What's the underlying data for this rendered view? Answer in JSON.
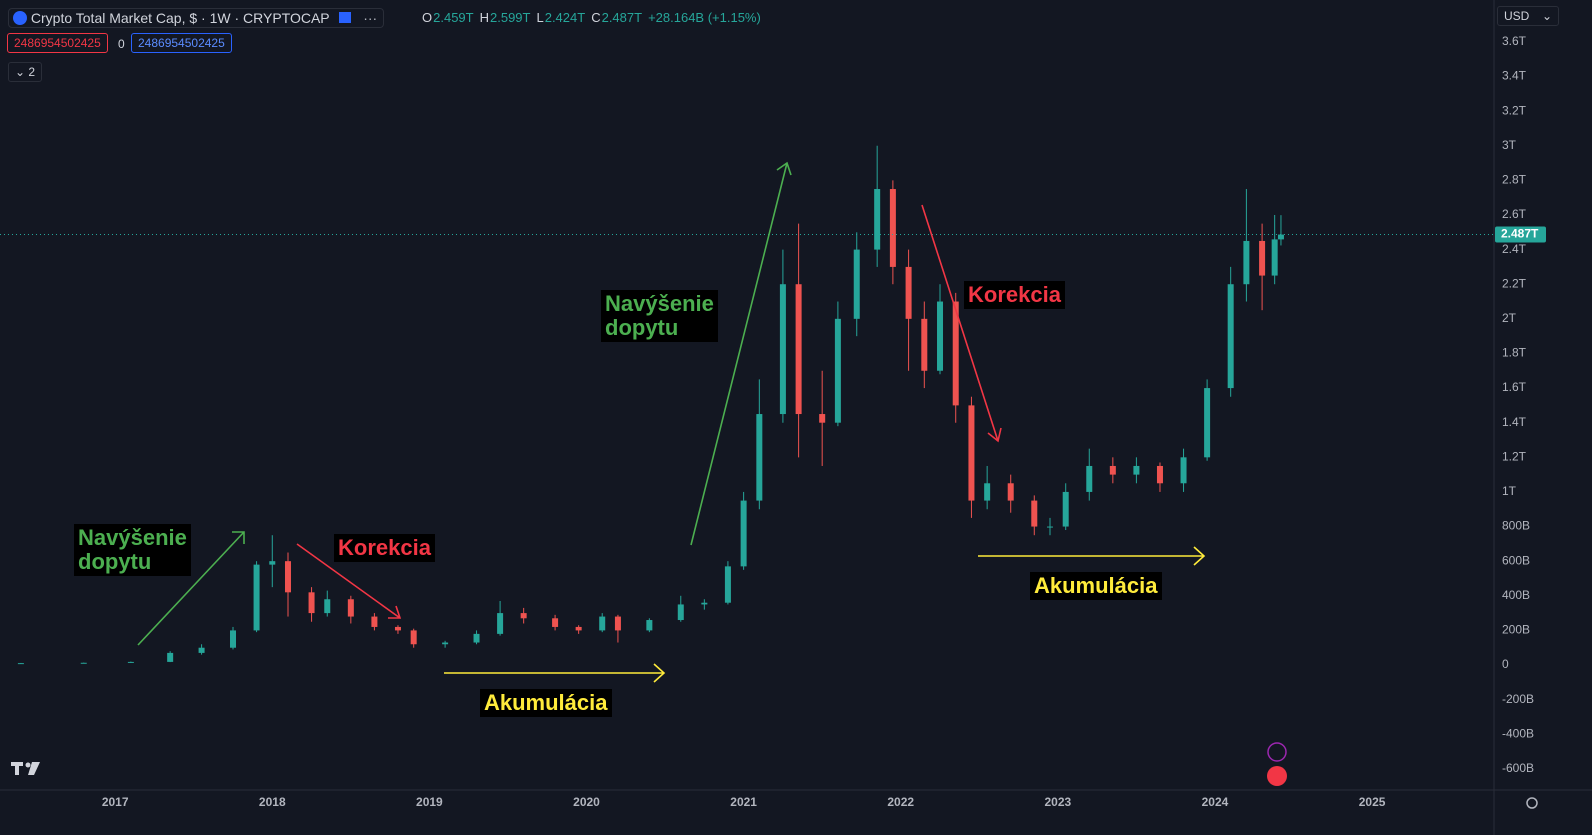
{
  "header": {
    "symbol": "Crypto Total Market Cap, $ · 1W · CRYPTOCAP",
    "ohlc": [
      {
        "key": "O",
        "value": "2.459T"
      },
      {
        "key": "H",
        "value": "2.599T"
      },
      {
        "key": "L",
        "value": "2.424T"
      },
      {
        "key": "C",
        "value": "2.487T"
      }
    ],
    "change": "+28.164B (+1.15%)",
    "sell": "2486954502425",
    "spread": "0",
    "buy": "2486954502425",
    "indicators": "2",
    "currency": "USD"
  },
  "chart_data": {
    "type": "candlestick",
    "x": [
      2016.4,
      2016.8,
      2017.1,
      2017.35,
      2017.55,
      2017.75,
      2017.9,
      2018.0,
      2018.1,
      2018.25,
      2018.35,
      2018.5,
      2018.65,
      2018.8,
      2018.9,
      2019.1,
      2019.3,
      2019.45,
      2019.6,
      2019.8,
      2019.95,
      2020.1,
      2020.2,
      2020.4,
      2020.6,
      2020.75,
      2020.9,
      2021.0,
      2021.1,
      2021.25,
      2021.35,
      2021.5,
      2021.6,
      2021.72,
      2021.85,
      2021.95,
      2022.05,
      2022.15,
      2022.25,
      2022.35,
      2022.45,
      2022.55,
      2022.7,
      2022.85,
      2022.95,
      2023.05,
      2023.2,
      2023.35,
      2023.5,
      2023.65,
      2023.8,
      2023.95,
      2024.1,
      2024.2,
      2024.3,
      2024.38,
      2024.42
    ],
    "open": [
      0.01,
      0.011,
      0.013,
      0.018,
      0.07,
      0.1,
      0.2,
      0.58,
      0.6,
      0.42,
      0.3,
      0.38,
      0.28,
      0.22,
      0.2,
      0.12,
      0.13,
      0.18,
      0.3,
      0.27,
      0.22,
      0.2,
      0.28,
      0.2,
      0.26,
      0.35,
      0.36,
      0.57,
      0.95,
      1.45,
      2.2,
      1.45,
      1.4,
      2.0,
      2.4,
      2.75,
      2.3,
      2.0,
      1.7,
      2.1,
      1.5,
      0.95,
      1.05,
      0.95,
      0.8,
      0.8,
      1.0,
      1.15,
      1.1,
      1.15,
      1.05,
      1.2,
      1.6,
      2.2,
      2.45,
      2.25,
      2.459
    ],
    "high": [
      0.012,
      0.014,
      0.02,
      0.08,
      0.12,
      0.22,
      0.6,
      0.75,
      0.65,
      0.45,
      0.43,
      0.4,
      0.3,
      0.23,
      0.21,
      0.14,
      0.2,
      0.37,
      0.33,
      0.29,
      0.23,
      0.3,
      0.29,
      0.27,
      0.4,
      0.38,
      0.6,
      1.0,
      1.65,
      2.4,
      2.55,
      1.7,
      2.1,
      2.5,
      3.0,
      2.8,
      2.4,
      2.1,
      2.2,
      2.15,
      1.55,
      1.15,
      1.1,
      0.98,
      0.85,
      1.05,
      1.25,
      1.2,
      1.2,
      1.17,
      1.25,
      1.65,
      2.3,
      2.75,
      2.55,
      2.6,
      2.599
    ],
    "low": [
      0.009,
      0.01,
      0.012,
      0.017,
      0.06,
      0.09,
      0.19,
      0.45,
      0.28,
      0.25,
      0.28,
      0.24,
      0.2,
      0.18,
      0.1,
      0.1,
      0.12,
      0.17,
      0.24,
      0.2,
      0.18,
      0.19,
      0.13,
      0.19,
      0.25,
      0.32,
      0.35,
      0.55,
      0.9,
      1.4,
      1.2,
      1.15,
      1.38,
      1.9,
      2.3,
      2.2,
      1.7,
      1.6,
      1.68,
      1.4,
      0.85,
      0.9,
      0.88,
      0.75,
      0.75,
      0.78,
      0.95,
      1.05,
      1.05,
      1.0,
      1.0,
      1.18,
      1.55,
      2.1,
      2.05,
      2.2,
      2.424
    ],
    "close": [
      0.011,
      0.013,
      0.018,
      0.07,
      0.1,
      0.2,
      0.58,
      0.6,
      0.42,
      0.3,
      0.38,
      0.28,
      0.22,
      0.2,
      0.12,
      0.13,
      0.18,
      0.3,
      0.27,
      0.22,
      0.2,
      0.28,
      0.2,
      0.26,
      0.35,
      0.36,
      0.57,
      0.95,
      1.45,
      2.2,
      1.45,
      1.4,
      2.0,
      2.4,
      2.75,
      2.3,
      2.0,
      1.7,
      2.1,
      1.5,
      0.95,
      1.05,
      0.95,
      0.8,
      0.8,
      1.0,
      1.15,
      1.1,
      1.15,
      1.05,
      1.2,
      1.6,
      2.2,
      2.45,
      2.25,
      2.459,
      2.487
    ],
    "up_color": "#26a69a",
    "down_color": "#ef5350",
    "xlim": [
      2016.267,
      2025.776
    ],
    "xticks": [
      2017,
      2018,
      2019,
      2020,
      2021,
      2022,
      2023,
      2024,
      2025
    ],
    "ylim": [
      -0.722,
      3.842
    ],
    "yticks": [
      {
        "value": -0.6,
        "label": "-600B"
      },
      {
        "value": -0.4,
        "label": "-400B"
      },
      {
        "value": -0.2,
        "label": "-200B"
      },
      0,
      {
        "value": 0.2,
        "label": "200B"
      },
      {
        "value": 0.4,
        "label": "400B"
      },
      {
        "value": 0.6,
        "label": "600B"
      },
      {
        "value": 0.8,
        "label": "800B"
      },
      {
        "value": 1,
        "label": "1T"
      },
      {
        "value": 1.2,
        "label": "1.2T"
      },
      {
        "value": 1.4,
        "label": "1.4T"
      },
      {
        "value": 1.6,
        "label": "1.6T"
      },
      {
        "value": 1.8,
        "label": "1.8T"
      },
      {
        "value": 2,
        "label": "2T"
      },
      {
        "value": 2.2,
        "label": "2.2T"
      },
      {
        "value": 2.4,
        "label": "2.4T"
      },
      {
        "value": 2.6,
        "label": "2.6T"
      },
      {
        "value": 2.8,
        "label": "2.8T"
      },
      {
        "value": 3,
        "label": "3T"
      },
      {
        "value": 3.2,
        "label": "3.2T"
      },
      {
        "value": 3.4,
        "label": "3.4T"
      },
      {
        "value": 3.6,
        "label": "3.6T"
      }
    ],
    "grid": false,
    "last_value": 2.487,
    "last_label": "2.487T",
    "annotations": [
      "Navýšenie dopytu",
      "Korekcia",
      "Akumulácia",
      "Navýšenie dopytu",
      "Korekcia",
      "Akumulácia"
    ]
  }
}
